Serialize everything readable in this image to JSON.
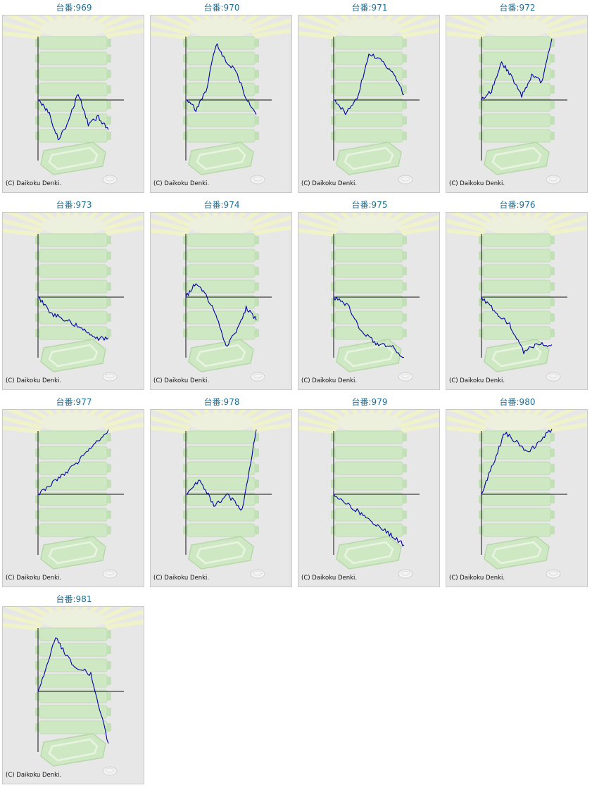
{
  "title_prefix": "台番:",
  "copyright": "(C) Daikoku Denki.",
  "colors": {
    "title": "#1d6f94",
    "line": "#0000aa",
    "axis": "#111111",
    "panel_bg": "#e7e7e7",
    "panel_border": "#c8c8c8",
    "bg_green": "#cfe8c4",
    "bg_yellow": "#f2f4c4"
  },
  "icons": [
    "pachinko-machine-watermark",
    "sunburst-rays",
    "coin-tray",
    "medal"
  ],
  "machines": [
    {
      "number": "969",
      "label": "台番:969",
      "chart_data": {
        "type": "line",
        "y": [
          0,
          -0.17,
          -0.62,
          -0.35,
          0.11,
          -0.39,
          -0.27,
          -0.47
        ]
      }
    },
    {
      "number": "970",
      "label": "台番:970",
      "chart_data": {
        "type": "line",
        "y": [
          0,
          -0.15,
          0.13,
          0.89,
          0.6,
          0.45,
          0.04,
          -0.23
        ]
      }
    },
    {
      "number": "971",
      "label": "台番:971",
      "chart_data": {
        "type": "line",
        "y": [
          0,
          -0.2,
          0.02,
          0.73,
          0.63,
          0.44,
          0.08
        ]
      }
    },
    {
      "number": "972",
      "label": "台番:972",
      "chart_data": {
        "type": "line",
        "y": [
          0,
          0.15,
          0.6,
          0.36,
          0.07,
          0.39,
          0.29,
          0.97
        ]
      }
    },
    {
      "number": "973",
      "label": "台番:973",
      "chart_data": {
        "type": "line",
        "y": [
          0,
          -0.27,
          -0.36,
          -0.48,
          -0.66,
          -0.64
        ]
      }
    },
    {
      "number": "974",
      "label": "台番:974",
      "chart_data": {
        "type": "line",
        "y": [
          0,
          0.24,
          0.04,
          -0.29,
          -0.78,
          -0.54,
          -0.17,
          -0.36
        ]
      }
    },
    {
      "number": "975",
      "label": "台番:975",
      "chart_data": {
        "type": "line",
        "y": [
          0,
          -0.13,
          -0.55,
          -0.73,
          -0.76,
          -0.95
        ]
      }
    },
    {
      "number": "976",
      "label": "台番:976",
      "chart_data": {
        "type": "line",
        "y": [
          0,
          -0.23,
          -0.43,
          -0.86,
          -0.75,
          -0.75
        ]
      }
    },
    {
      "number": "977",
      "label": "台番:977",
      "chart_data": {
        "type": "line",
        "y": [
          0,
          0.44,
          1.02
        ]
      }
    },
    {
      "number": "978",
      "label": "台番:978",
      "chart_data": {
        "type": "line",
        "y": [
          0,
          0.23,
          -0.17,
          -0.01,
          -0.26,
          1.02
        ]
      }
    },
    {
      "number": "979",
      "label": "台番:979",
      "chart_data": {
        "type": "line",
        "y": [
          0,
          -0.26,
          -0.52,
          -0.8
        ]
      }
    },
    {
      "number": "980",
      "label": "台番:980",
      "chart_data": {
        "type": "line",
        "y": [
          0,
          0.98,
          0.66,
          1.03
        ]
      }
    },
    {
      "number": "981",
      "label": "台番:981",
      "chart_data": {
        "type": "line",
        "y": [
          0,
          0.84,
          0.42,
          0.27,
          -0.82
        ]
      }
    }
  ]
}
